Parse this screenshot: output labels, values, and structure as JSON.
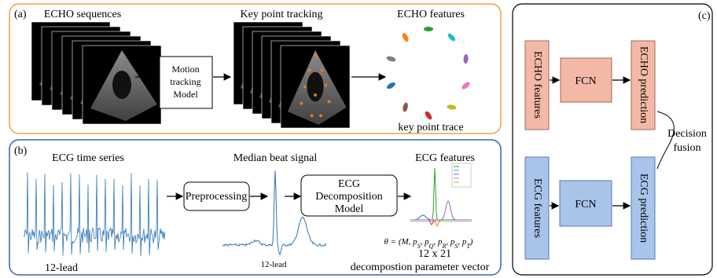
{
  "panel_a": {
    "label": "(a)",
    "echo_sequences": "ECHO sequences",
    "motion_model": [
      "Motion",
      "tracking",
      "Model"
    ],
    "key_point_tracking": "Key point tracking",
    "echo_features": "ECHO features",
    "key_point_trace": "key point trace"
  },
  "panel_b": {
    "label": "(b)",
    "ecg_time_series": "ECG time series",
    "lead_left": "12-lead",
    "preprocessing": "Preprocessing",
    "median_beat": "Median beat signal",
    "decomposition_model": [
      "ECG",
      "Decomposition",
      "Model"
    ],
    "lead_mid": "12-lead",
    "ecg_features": "ECG features",
    "formula": {
      "lead": "θ = (M, ",
      "terms": [
        {
          "base": "p",
          "sub": "S",
          "after": ", "
        },
        {
          "base": "p",
          "sub": "Q",
          "after": ", "
        },
        {
          "base": "p",
          "sub": "R",
          "after": ", "
        },
        {
          "base": "p",
          "sub": "S",
          "after": ", "
        },
        {
          "base": "p",
          "sub": "T",
          "after": ")"
        }
      ]
    },
    "shape": "12 x 21",
    "parameter_vector": "decompostion parameter vector"
  },
  "panel_c": {
    "label": "(c)",
    "echo_features": "ECHO features",
    "fcn_top": "FCN",
    "echo_prediction": "ECHO prediction",
    "ecg_features": "ECG features",
    "fcn_bottom": "FCN",
    "ecg_prediction": "ECG prediction",
    "decision_fusion": [
      "Decision",
      "fusion"
    ]
  }
}
